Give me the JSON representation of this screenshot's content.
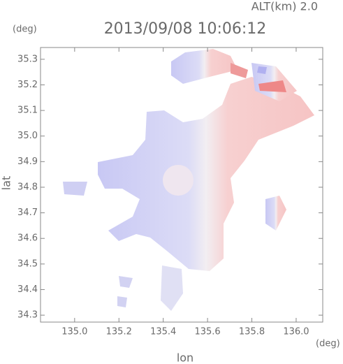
{
  "chart_data": {
    "type": "image",
    "title": "2013/09/08 10:06:12",
    "annotation": "ALT(km) 2.0",
    "x_label": "lon",
    "y_label": "lat",
    "x_unit": "(deg)",
    "y_unit": "(deg)",
    "xlim": [
      134.846,
      136.12
    ],
    "ylim": [
      34.273,
      35.346
    ],
    "xticks": [
      {
        "value": 135,
        "label": "135.0"
      },
      135.2,
      135.4,
      135.6,
      135.8,
      {
        "value": 136,
        "label": "136.0"
      }
    ],
    "yticks": [
      34.3,
      34.4,
      34.5,
      34.6,
      34.7,
      34.8,
      34.9,
      {
        "value": 35,
        "label": "35.0"
      },
      35.1,
      35.2,
      35.3
    ]
  }
}
